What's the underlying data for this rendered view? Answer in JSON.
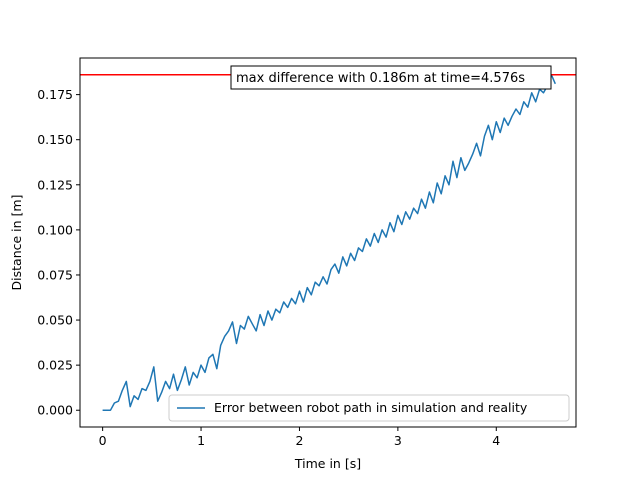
{
  "chart_data": {
    "type": "line",
    "xlabel": "Time in [s]",
    "ylabel": "Distance in [m]",
    "xlim": [
      -0.23,
      4.81
    ],
    "ylim": [
      -0.0093,
      0.1953
    ],
    "x_ticks": [
      0,
      1,
      2,
      3,
      4
    ],
    "x_tick_labels": [
      "0",
      "1",
      "2",
      "3",
      "4"
    ],
    "y_ticks": [
      0.0,
      0.025,
      0.05,
      0.075,
      0.1,
      0.125,
      0.15,
      0.175
    ],
    "y_tick_labels": [
      "0.000",
      "0.025",
      "0.050",
      "0.075",
      "0.100",
      "0.125",
      "0.150",
      "0.175"
    ],
    "grid": false,
    "legend_position": "lower-right",
    "series": [
      {
        "name": "Error between robot path in simulation and reality",
        "color": "#1f77b4",
        "x": [
          0.0,
          0.04,
          0.08,
          0.12,
          0.16,
          0.2,
          0.24,
          0.28,
          0.32,
          0.36,
          0.4,
          0.44,
          0.48,
          0.52,
          0.56,
          0.6,
          0.64,
          0.68,
          0.72,
          0.76,
          0.8,
          0.84,
          0.88,
          0.92,
          0.96,
          1.0,
          1.04,
          1.08,
          1.12,
          1.16,
          1.2,
          1.24,
          1.28,
          1.32,
          1.36,
          1.4,
          1.44,
          1.48,
          1.52,
          1.56,
          1.6,
          1.64,
          1.68,
          1.72,
          1.76,
          1.8,
          1.84,
          1.88,
          1.92,
          1.96,
          2.0,
          2.04,
          2.08,
          2.12,
          2.16,
          2.2,
          2.24,
          2.28,
          2.32,
          2.36,
          2.4,
          2.44,
          2.48,
          2.52,
          2.56,
          2.6,
          2.64,
          2.68,
          2.72,
          2.76,
          2.8,
          2.84,
          2.88,
          2.92,
          2.96,
          3.0,
          3.04,
          3.08,
          3.12,
          3.16,
          3.2,
          3.24,
          3.28,
          3.32,
          3.36,
          3.4,
          3.44,
          3.48,
          3.52,
          3.56,
          3.6,
          3.64,
          3.68,
          3.72,
          3.76,
          3.8,
          3.84,
          3.88,
          3.92,
          3.96,
          4.0,
          4.04,
          4.08,
          4.12,
          4.16,
          4.2,
          4.24,
          4.28,
          4.32,
          4.36,
          4.4,
          4.44,
          4.48,
          4.52,
          4.56,
          4.6
        ],
        "y": [
          0.0,
          0.0,
          0.0,
          0.004,
          0.005,
          0.011,
          0.016,
          0.002,
          0.008,
          0.006,
          0.012,
          0.011,
          0.016,
          0.024,
          0.005,
          0.01,
          0.016,
          0.012,
          0.02,
          0.011,
          0.017,
          0.024,
          0.014,
          0.021,
          0.018,
          0.025,
          0.021,
          0.029,
          0.031,
          0.023,
          0.036,
          0.041,
          0.044,
          0.049,
          0.037,
          0.047,
          0.045,
          0.052,
          0.048,
          0.044,
          0.053,
          0.047,
          0.055,
          0.05,
          0.056,
          0.054,
          0.06,
          0.057,
          0.062,
          0.059,
          0.066,
          0.06,
          0.068,
          0.064,
          0.071,
          0.069,
          0.074,
          0.07,
          0.078,
          0.081,
          0.076,
          0.085,
          0.08,
          0.087,
          0.083,
          0.09,
          0.088,
          0.095,
          0.091,
          0.098,
          0.093,
          0.1,
          0.096,
          0.104,
          0.099,
          0.108,
          0.103,
          0.11,
          0.106,
          0.112,
          0.109,
          0.117,
          0.112,
          0.121,
          0.115,
          0.126,
          0.12,
          0.13,
          0.125,
          0.138,
          0.129,
          0.14,
          0.133,
          0.137,
          0.142,
          0.148,
          0.141,
          0.152,
          0.158,
          0.15,
          0.16,
          0.154,
          0.162,
          0.158,
          0.163,
          0.167,
          0.164,
          0.171,
          0.168,
          0.176,
          0.171,
          0.178,
          0.176,
          0.18,
          0.186,
          0.181
        ]
      }
    ],
    "hline": {
      "y": 0.186,
      "color": "#ff0000"
    },
    "annotation": "max difference with 0.186m at time=4.576s"
  }
}
